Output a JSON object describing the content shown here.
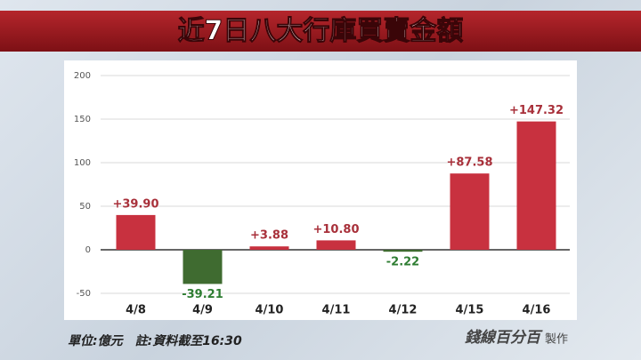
{
  "chart_data": {
    "type": "bar",
    "title": "近7日八大行庫買賣金額",
    "categories": [
      "4/8",
      "4/9",
      "4/10",
      "4/11",
      "4/12",
      "4/15",
      "4/16"
    ],
    "values": [
      39.9,
      -39.21,
      3.88,
      10.8,
      -2.22,
      87.58,
      147.32
    ],
    "value_labels": [
      "+39.90",
      "-39.21",
      "+3.88",
      "+10.80",
      "-2.22",
      "+87.58",
      "+147.32"
    ],
    "colors": [
      "#c8313f",
      "#3f6b30",
      "#c8313f",
      "#c8313f",
      "#3f6b30",
      "#c8313f",
      "#c8313f"
    ],
    "label_colors": [
      "#a8303a",
      "#2e7d32",
      "#a8303a",
      "#a8303a",
      "#2e7d32",
      "#a8303a",
      "#a8303a"
    ],
    "ylim": [
      -50,
      200
    ],
    "yticks": [
      -50,
      0,
      50,
      100,
      150,
      200
    ],
    "grid": true,
    "footnote": "單位:億元　註:資料截至16:30",
    "source_logo": "錢線百分百",
    "source_suffix": "製作"
  }
}
